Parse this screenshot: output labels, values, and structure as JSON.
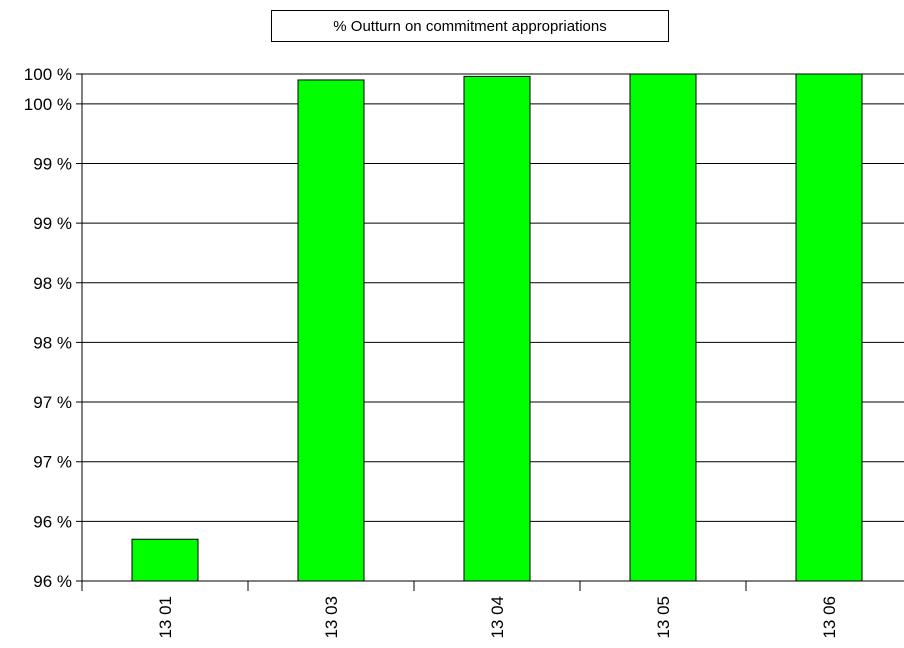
{
  "chart_data": {
    "type": "bar",
    "title": "% Outturn on commitment appropriations",
    "categories": [
      "13 01",
      "13 03",
      "13 04",
      "13 05",
      "13 06"
    ],
    "series": [
      {
        "name": "% Outturn on commitment appropriations",
        "values": [
          96.1,
          99.95,
          99.98,
          100.0,
          100.0
        ],
        "color": "#00FF00"
      }
    ],
    "ylim": [
      95.75,
      100.0
    ],
    "y_ticks": [
      95.75,
      96.25,
      96.75,
      97.25,
      97.75,
      98.25,
      98.75,
      99.25,
      99.75,
      100.0
    ],
    "y_tick_labels": [
      "96 %",
      "96 %",
      "97 %",
      "97 %",
      "98 %",
      "98 %",
      "99 %",
      "99 %",
      "100 %",
      "100 %"
    ],
    "grid": true,
    "legend_position": "top-center",
    "xlabel": "",
    "ylabel": ""
  }
}
